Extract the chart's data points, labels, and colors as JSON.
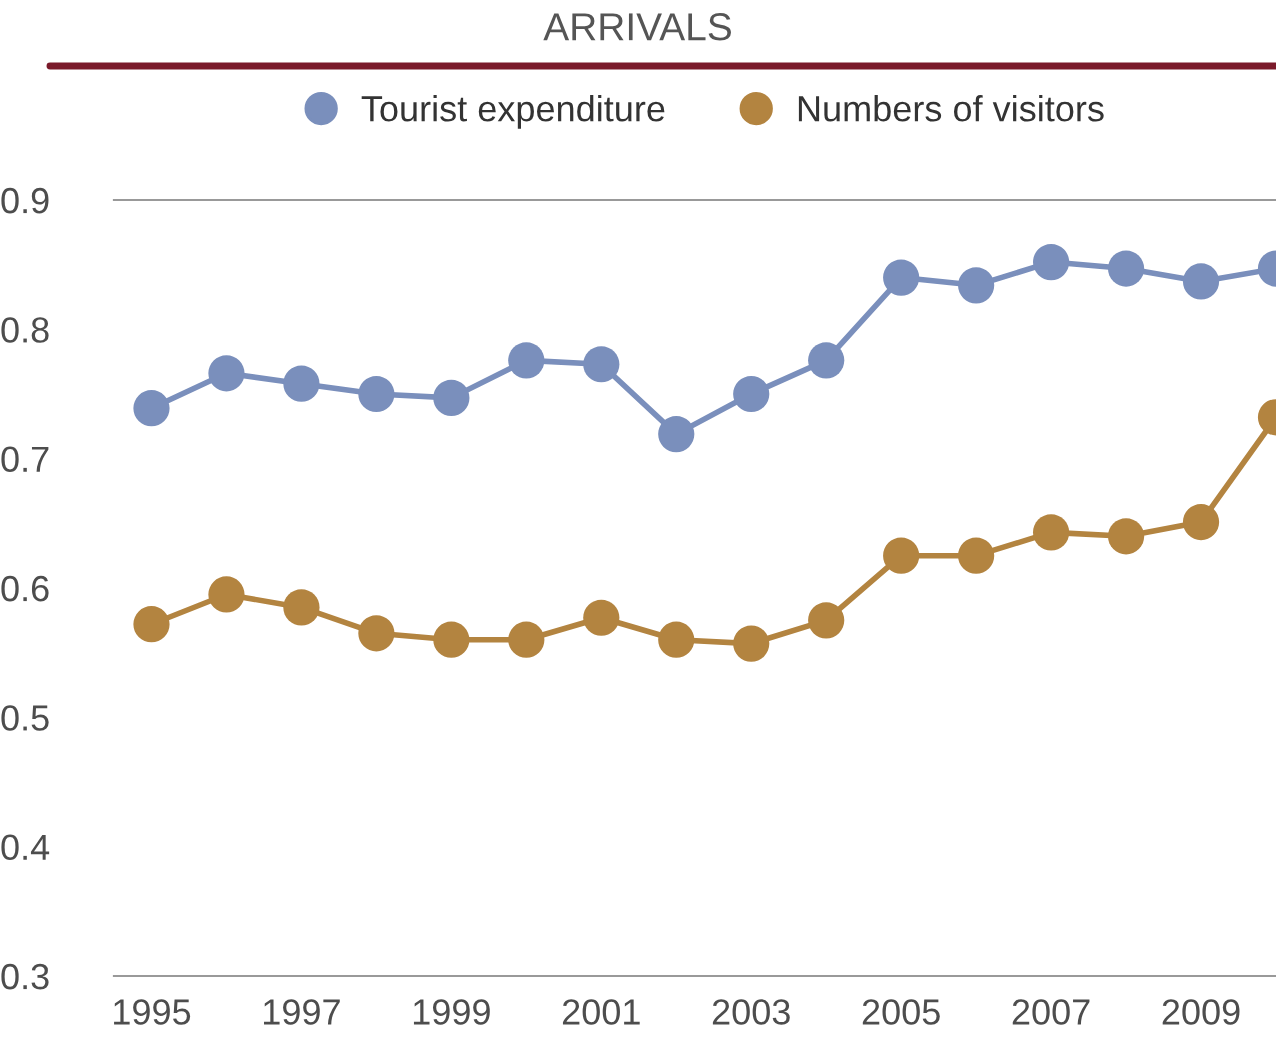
{
  "chart_data": {
    "type": "line",
    "title": "ARRIVALS",
    "x": [
      1995,
      1996,
      1997,
      1998,
      1999,
      2000,
      2001,
      2002,
      2003,
      2004,
      2005,
      2006,
      2007,
      2008,
      2009,
      2010
    ],
    "series": [
      {
        "name": "Tourist expenditure",
        "color": "#7a8fbc",
        "values": [
          0.739,
          0.766,
          0.758,
          0.75,
          0.747,
          0.776,
          0.773,
          0.719,
          0.75,
          0.776,
          0.84,
          0.834,
          0.852,
          0.847,
          0.837,
          0.847
        ]
      },
      {
        "name": "Numbers of visitors",
        "color": "#b38440",
        "values": [
          0.572,
          0.595,
          0.585,
          0.565,
          0.56,
          0.56,
          0.577,
          0.56,
          0.557,
          0.575,
          0.625,
          0.625,
          0.643,
          0.64,
          0.651,
          0.732
        ]
      }
    ],
    "xlim": [
      1994.5,
      2010
    ],
    "xticks": [
      1995,
      1997,
      1999,
      2001,
      2003,
      2005,
      2007,
      2009
    ],
    "ylim": [
      0.3,
      0.9
    ],
    "yticks": [
      0.3,
      0.4,
      0.5,
      0.6,
      0.7,
      0.8,
      0.9
    ],
    "marker": "circle",
    "line_style": "solid",
    "legend": "top",
    "grid": false
  }
}
